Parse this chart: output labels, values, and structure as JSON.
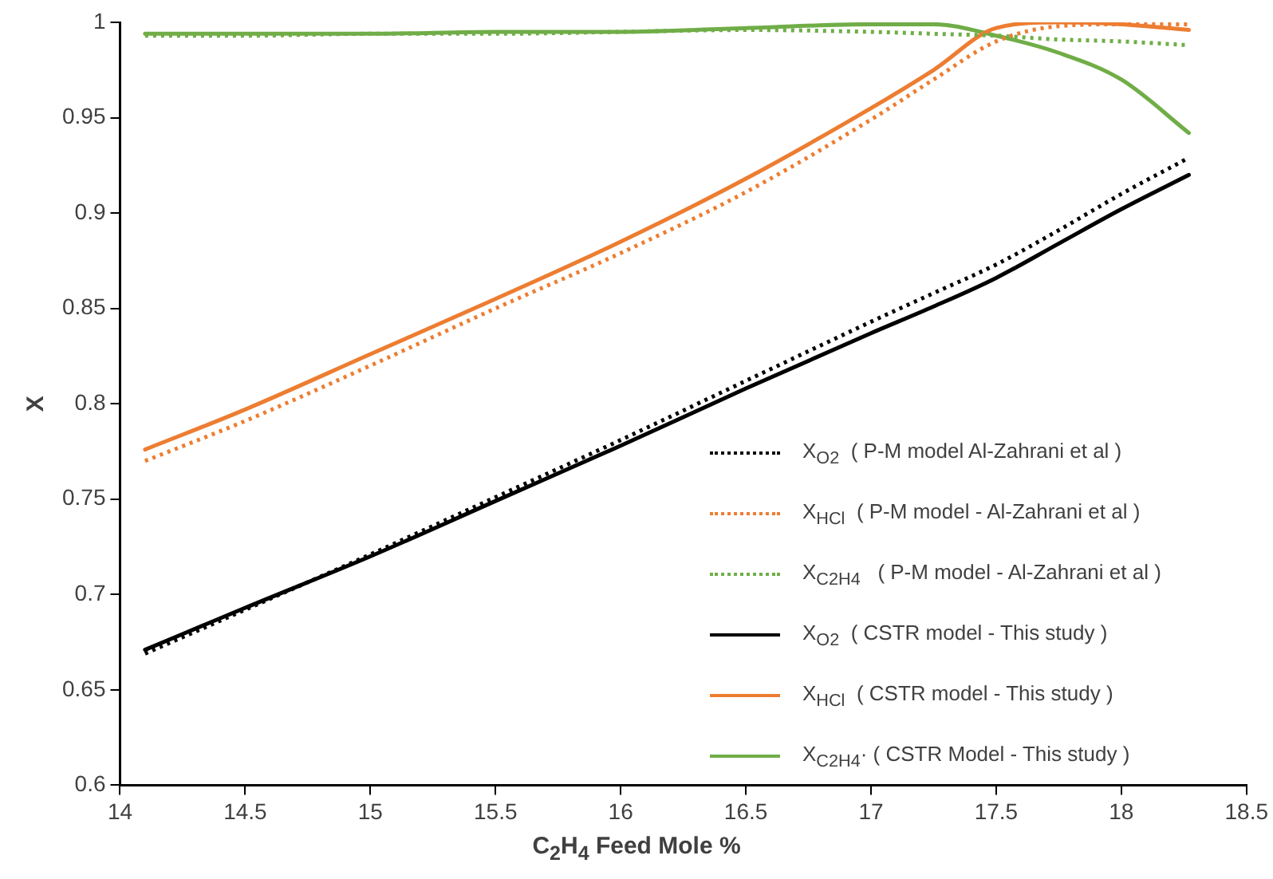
{
  "chart_data": {
    "type": "line",
    "xlabel": "C$_{2}$H$_{4}$ Feed Mole %",
    "ylabel": "X",
    "xlim": [
      14,
      18.5
    ],
    "xticks": [
      14,
      14.5,
      15,
      15.5,
      16,
      16.5,
      17,
      17.5,
      18,
      18.5
    ],
    "ylim": [
      0.6,
      1
    ],
    "yticks": [
      0.6,
      0.65,
      0.7,
      0.75,
      0.8,
      0.85,
      0.9,
      0.95,
      1
    ],
    "grid": false,
    "legend": "bottom right",
    "marker": "none",
    "x": [
      14.1,
      14.5,
      15,
      15.5,
      16,
      16.5,
      17,
      17.25,
      17.5,
      17.75,
      18,
      18.27
    ],
    "series": [
      {
        "name": "X$_{O2}$  ( P-M model Al-Zahrani et al )",
        "color": "#000000",
        "line_style": "dotted",
        "values": [
          0.669,
          0.692,
          0.721,
          0.751,
          0.781,
          0.812,
          0.843,
          0.858,
          0.873,
          0.891,
          0.91,
          0.929
        ]
      },
      {
        "name": "X$_{HCl}$  ( P-M model - Al-Zahrani et al )",
        "color": "#ed7d31",
        "line_style": "dotted",
        "values": [
          0.77,
          0.791,
          0.82,
          0.85,
          0.879,
          0.911,
          0.949,
          0.97,
          0.99,
          0.998,
          0.999,
          0.999
        ]
      },
      {
        "name": "X$_{C2H4}$   ( P-M model - Al-Zahrani et al )",
        "color": "#70ad47",
        "line_style": "dotted",
        "values": [
          0.993,
          0.993,
          0.994,
          0.994,
          0.995,
          0.996,
          0.995,
          0.994,
          0.993,
          0.991,
          0.99,
          0.988
        ]
      },
      {
        "name": "X$_{O2}$  ( CSTR model - This study )",
        "color": "#000000",
        "line_style": "solid",
        "values": [
          0.671,
          0.693,
          0.72,
          0.749,
          0.778,
          0.808,
          0.837,
          0.851,
          0.866,
          0.884,
          0.902,
          0.92
        ]
      },
      {
        "name": "X$_{HCl}$  ( CSTR model - This study )",
        "color": "#ed7d31",
        "line_style": "solid",
        "values": [
          0.776,
          0.797,
          0.826,
          0.855,
          0.885,
          0.918,
          0.955,
          0.975,
          0.997,
          1.0,
          0.999,
          0.996
        ]
      },
      {
        "name": "X$_{C2H4}$· ( CSTR Model - This study )",
        "color": "#70ad47",
        "line_style": "solid",
        "values": [
          0.994,
          0.994,
          0.994,
          0.995,
          0.995,
          0.997,
          0.999,
          0.999,
          0.993,
          0.984,
          0.97,
          0.942
        ]
      }
    ]
  }
}
